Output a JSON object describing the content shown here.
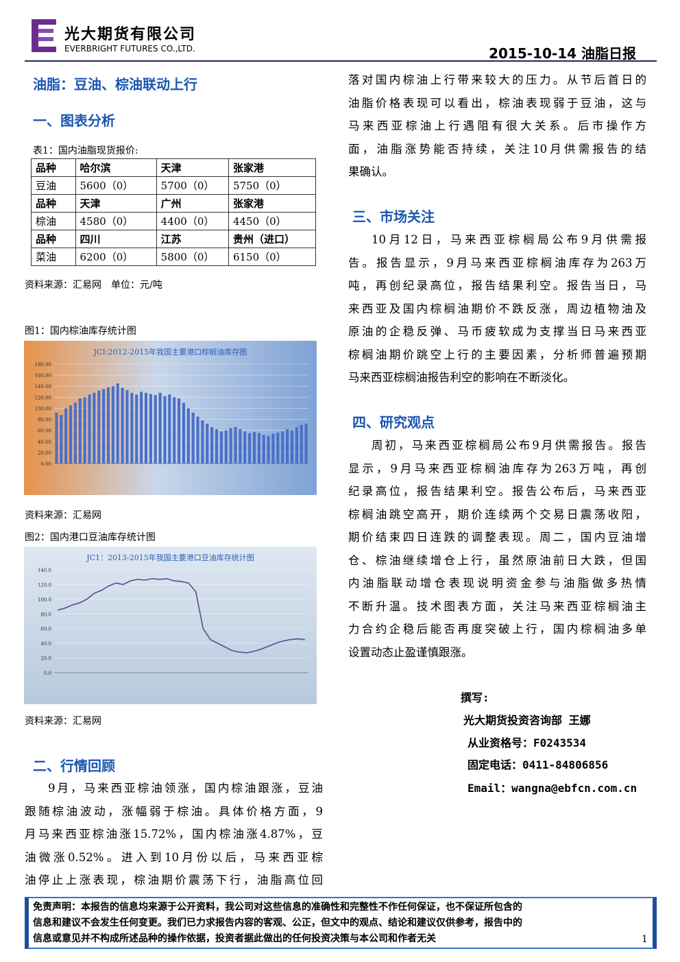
{
  "header": {
    "company_cn": "光大期货有限公司",
    "company_en": "EVERBRIGHT FUTURES CO.,LTD.",
    "date": "2015-10-14",
    "report": "油脂日报"
  },
  "title": "油脂：豆油、棕油联动上行",
  "s1": {
    "heading": "一、图表分析",
    "table_caption": "表1：国内油脂现货报价:",
    "table": {
      "rows": [
        [
          "品种",
          "哈尔滨",
          "天津",
          "张家港"
        ],
        [
          "豆油",
          "5600（0）",
          "5700（0）",
          "5750（0）"
        ],
        [
          "品种",
          "天津",
          "广州",
          "张家港"
        ],
        [
          "棕油",
          "4580（0）",
          "4400（0）",
          "4450（0）"
        ],
        [
          "品种",
          "四川",
          "江苏",
          "贵州（进口）"
        ],
        [
          "菜油",
          "6200（0）",
          "5800（0）",
          "6150（0）"
        ]
      ]
    },
    "table_source": "资料来源：汇易网　单位：元/吨",
    "fig1_caption": "图1：国内棕油库存统计图",
    "fig1_source": "资料来源：汇易网",
    "fig2_caption": "图2：国内港口豆油库存统计图",
    "fig2_source": "资料来源：汇易网"
  },
  "charts": [
    {
      "type": "bar",
      "title": "JCI:2012-2015年我国主要港口棕榈油库存图",
      "color": "#4a6fc8",
      "ylim": [
        0,
        180
      ],
      "yticks": [
        {
          "value": 0,
          "label": "0.00"
        },
        {
          "value": 20,
          "label": "20.00"
        },
        {
          "value": 40,
          "label": "40.00"
        },
        {
          "value": 60,
          "label": "60.00"
        },
        {
          "value": 80,
          "label": "80.00"
        },
        {
          "value": 100,
          "label": "100.00"
        },
        {
          "value": 120,
          "label": "120.00"
        },
        {
          "value": 140,
          "label": "140.00"
        },
        {
          "value": 160,
          "label": "160.00"
        },
        {
          "value": 180,
          "label": "180.00"
        }
      ],
      "values": [
        92,
        88,
        100,
        105,
        110,
        118,
        120,
        125,
        128,
        132,
        135,
        138,
        140,
        145,
        137,
        133,
        128,
        125,
        130,
        128,
        126,
        124,
        128,
        122,
        125,
        120,
        118,
        110,
        100,
        92,
        85,
        78,
        72,
        66,
        62,
        58,
        60,
        64,
        66,
        62,
        58,
        55,
        57,
        55,
        52,
        50,
        54,
        56,
        58,
        62,
        60,
        66,
        70,
        72
      ]
    },
    {
      "type": "line",
      "title": "JC1：2013-2015年我国主要港口豆油库存统计图",
      "color": "#5b4a8e",
      "ylim": [
        0,
        140
      ],
      "yticks": [
        {
          "value": 0,
          "label": "0.0"
        },
        {
          "value": 20,
          "label": "20.0"
        },
        {
          "value": 40,
          "label": "40.0"
        },
        {
          "value": 60,
          "label": "60.0"
        },
        {
          "value": 80,
          "label": "80.0"
        },
        {
          "value": 100,
          "label": "100.0"
        },
        {
          "value": 120,
          "label": "120.0"
        },
        {
          "value": 140,
          "label": "140.0"
        }
      ],
      "values": [
        85,
        88,
        92,
        95,
        100,
        108,
        112,
        118,
        122,
        120,
        125,
        127,
        126,
        128,
        127,
        128,
        125,
        124,
        122,
        110,
        60,
        45,
        40,
        35,
        30,
        28,
        27,
        29,
        32,
        36,
        40,
        43,
        45,
        46,
        45
      ]
    }
  ],
  "s2": {
    "heading": "二、行情回顾",
    "lines": [
      "9月，马来西亚棕油领涨，国内棕油跟涨，豆油",
      "跟随棕油波动，涨幅弱于棕油。具体价格方面，9",
      "月马来西亚棕油涨15.72%，国内棕油涨4.87%，豆",
      "油微涨0.52%。进入到10月份以后，马来西亚棕",
      "油停止上涨表现，棕油期价震荡下行，油脂高位回",
      "落对国内棕油上行带来较大的压力。从节后首日的",
      "油脂价格表现可以看出，棕油表现弱于豆油，这与",
      "马来西亚棕油上行遇阻有很大关系。后市操作方",
      "面，油脂涨势能否持续，关注10月供需报告的结",
      "果确认。"
    ]
  },
  "s3": {
    "heading": "三、市场关注",
    "lines": [
      "10月12日，马来西亚棕榈局公布9月供需报",
      "告。报告显示，9月马来西亚棕榈油库存为263万",
      "吨，再创纪录高位，报告结果利空。报告当日，马",
      "来西亚及国内棕榈油期价不跌反涨，周边植物油及",
      "原油的企稳反弹、马币疲软成为支撑当日马来西亚",
      "棕榈油期价跳空上行的主要因素，分析师普遍预期",
      "马来西亚棕榈油报告利空的影响在不断淡化。"
    ]
  },
  "s4": {
    "heading": "四、研究观点",
    "lines": [
      "周初，马来西亚棕榈局公布9月供需报告。报告",
      "显示，9月马来西亚棕榈油库存为263万吨，再创",
      "纪录高位，报告结果利空。报告公布后，马来西亚",
      "棕榈油跳空高开，期价连续两个交易日震荡收阳，",
      "期价结束四日连跌的调整表现。周二，国内豆油增",
      "仓、棕油继续增仓上行，虽然原油前日大跌，但国",
      "内油脂联动增仓表现说明资金参与油脂做多热情",
      "不断升温。技术图表方面，关注马来西亚棕榈油主",
      "力合约企稳后能否再度突破上行，国内棕榈油多单",
      "设置动态止盈谨慎跟涨。"
    ]
  },
  "author": {
    "label": "撰写:",
    "dept": "光大期货投资咨询部 王娜",
    "license": "从业资格号：F0243534",
    "phone": "固定电话：0411-84806856",
    "email": "Email：wangna@ebfcn.com.cn"
  },
  "footer": {
    "disclaimer": [
      "免责声明：本报告的信息均来源于公开资料，我公司对这些信息的准确性和完整性不作任何保证，也不保证所包含的",
      "信息和建议不会发生任何变更。我们已力求报告内容的客观、公正，但文中的观点、结论和建议仅供参考，报告中的",
      "信息或意见并不构成所述品种的操作依据，投资者据此做出的任何投资决策与本公司和作者无关"
    ],
    "page": 1
  }
}
